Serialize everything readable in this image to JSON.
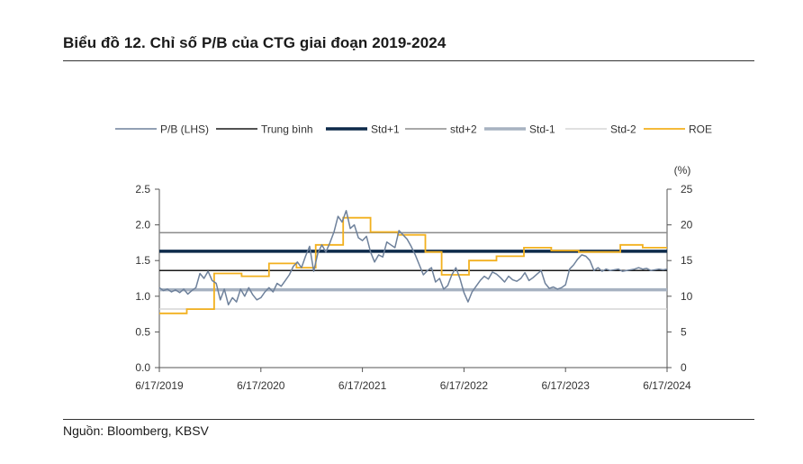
{
  "header": {
    "title": "Biểu đồ 12. Chỉ số P/B của CTG giai đoạn 2019-2024"
  },
  "footer": {
    "source": "Nguồn: Bloomberg, KBSV"
  },
  "chart_data": {
    "type": "line",
    "title": "",
    "xlabel": "",
    "ylabel_left": "",
    "ylabel_right": "(%)",
    "x_ticks": [
      "6/17/2019",
      "6/17/2020",
      "6/17/2021",
      "6/17/2022",
      "6/17/2023",
      "6/17/2024"
    ],
    "ylim_left": [
      0,
      2.5
    ],
    "ylim_right": [
      0,
      25
    ],
    "yticks_left": [
      "0.0",
      "0.5",
      "1.0",
      "1.5",
      "2.0",
      "2.5"
    ],
    "yticks_right": [
      "0",
      "5",
      "10",
      "15",
      "20",
      "25"
    ],
    "legend_position": "top",
    "legend": [
      {
        "name": "P/B (LHS)",
        "color": "#6e819b",
        "width": 1.5
      },
      {
        "name": "Trung bình",
        "color": "#1a1a1a",
        "width": 1.5
      },
      {
        "name": "Std+1",
        "color": "#0d2a4a",
        "width": 3.5
      },
      {
        "name": "std+2",
        "color": "#8c8c8c",
        "width": 1.5
      },
      {
        "name": "Std-1",
        "color": "#a7b2c1",
        "width": 3.5
      },
      {
        "name": "Std-2",
        "color": "#d6d6d6",
        "width": 1.5
      },
      {
        "name": "ROE",
        "color": "#f2b01e",
        "width": 1.8
      }
    ],
    "horizontal_lines": [
      {
        "name": "Trung bình",
        "value": 1.36
      },
      {
        "name": "Std+1",
        "value": 1.63
      },
      {
        "name": "std+2",
        "value": 1.89
      },
      {
        "name": "Std-1",
        "value": 1.09
      },
      {
        "name": "Std-2",
        "value": 0.82
      }
    ],
    "pb_series": {
      "name": "P/B (LHS)",
      "x_years": [
        0.0,
        0.04,
        0.08,
        0.12,
        0.16,
        0.2,
        0.24,
        0.28,
        0.32,
        0.36,
        0.4,
        0.44,
        0.48,
        0.52,
        0.56,
        0.6,
        0.64,
        0.68,
        0.72,
        0.76,
        0.8,
        0.84,
        0.88,
        0.92,
        0.96,
        1.0,
        1.04,
        1.08,
        1.12,
        1.16,
        1.2,
        1.24,
        1.28,
        1.32,
        1.36,
        1.4,
        1.44,
        1.48,
        1.52,
        1.56,
        1.6,
        1.64,
        1.68,
        1.72,
        1.76,
        1.8,
        1.84,
        1.88,
        1.92,
        1.96,
        2.0,
        2.04,
        2.08,
        2.12,
        2.16,
        2.2,
        2.24,
        2.28,
        2.32,
        2.36,
        2.4,
        2.44,
        2.48,
        2.52,
        2.56,
        2.6,
        2.64,
        2.68,
        2.72,
        2.76,
        2.8,
        2.84,
        2.88,
        2.92,
        2.96,
        3.0,
        3.04,
        3.08,
        3.12,
        3.16,
        3.2,
        3.24,
        3.28,
        3.32,
        3.36,
        3.4,
        3.44,
        3.48,
        3.52,
        3.56,
        3.6,
        3.64,
        3.68,
        3.72,
        3.76,
        3.8,
        3.84,
        3.88,
        3.92,
        3.96,
        4.0,
        4.04,
        4.08,
        4.12,
        4.16,
        4.2,
        4.24,
        4.28,
        4.32,
        4.36,
        4.4,
        4.44,
        4.48,
        4.52,
        4.56,
        4.6,
        4.64,
        4.68,
        4.72,
        4.76,
        4.8,
        4.84,
        4.88,
        4.92,
        4.96,
        5.0
      ],
      "values": [
        1.12,
        1.08,
        1.1,
        1.06,
        1.09,
        1.05,
        1.1,
        1.03,
        1.08,
        1.12,
        1.32,
        1.25,
        1.35,
        1.22,
        1.18,
        0.95,
        1.1,
        0.88,
        0.98,
        0.92,
        1.1,
        1.0,
        1.12,
        1.02,
        0.95,
        0.98,
        1.06,
        1.12,
        1.06,
        1.18,
        1.14,
        1.22,
        1.3,
        1.42,
        1.48,
        1.4,
        1.56,
        1.7,
        1.35,
        1.6,
        1.72,
        1.62,
        1.75,
        1.9,
        2.12,
        2.04,
        2.2,
        1.95,
        2.0,
        1.82,
        1.78,
        1.84,
        1.62,
        1.48,
        1.58,
        1.55,
        1.76,
        1.72,
        1.68,
        1.92,
        1.86,
        1.8,
        1.7,
        1.58,
        1.44,
        1.3,
        1.36,
        1.4,
        1.2,
        1.25,
        1.1,
        1.15,
        1.3,
        1.4,
        1.25,
        1.05,
        0.92,
        1.06,
        1.14,
        1.22,
        1.28,
        1.24,
        1.34,
        1.31,
        1.26,
        1.2,
        1.28,
        1.23,
        1.21,
        1.25,
        1.33,
        1.22,
        1.26,
        1.31,
        1.36,
        1.18,
        1.11,
        1.13,
        1.1,
        1.12,
        1.16,
        1.38,
        1.44,
        1.52,
        1.58,
        1.56,
        1.5,
        1.36,
        1.4,
        1.35,
        1.38,
        1.36,
        1.37,
        1.38,
        1.35,
        1.36,
        1.37,
        1.38,
        1.4,
        1.38,
        1.39,
        1.36,
        1.37,
        1.38,
        1.37,
        1.38
      ]
    },
    "roe_series": {
      "name": "ROE",
      "steps": [
        {
          "from": 0.0,
          "to": 0.27,
          "value": 7.6
        },
        {
          "from": 0.27,
          "to": 0.54,
          "value": 8.2
        },
        {
          "from": 0.54,
          "to": 0.81,
          "value": 13.2
        },
        {
          "from": 0.81,
          "to": 1.08,
          "value": 12.8
        },
        {
          "from": 1.08,
          "to": 1.35,
          "value": 14.6
        },
        {
          "from": 1.35,
          "to": 1.54,
          "value": 14.0
        },
        {
          "from": 1.54,
          "to": 1.81,
          "value": 17.2
        },
        {
          "from": 1.81,
          "to": 2.08,
          "value": 21.0
        },
        {
          "from": 2.08,
          "to": 2.35,
          "value": 19.0
        },
        {
          "from": 2.35,
          "to": 2.62,
          "value": 18.6
        },
        {
          "from": 2.62,
          "to": 2.78,
          "value": 16.2
        },
        {
          "from": 2.78,
          "to": 3.05,
          "value": 13.0
        },
        {
          "from": 3.05,
          "to": 3.32,
          "value": 15.0
        },
        {
          "from": 3.32,
          "to": 3.59,
          "value": 15.6
        },
        {
          "from": 3.59,
          "to": 3.86,
          "value": 16.8
        },
        {
          "from": 3.86,
          "to": 4.13,
          "value": 16.4
        },
        {
          "from": 4.13,
          "to": 4.54,
          "value": 16.2
        },
        {
          "from": 4.54,
          "to": 4.76,
          "value": 17.2
        },
        {
          "from": 4.76,
          "to": 5.0,
          "value": 16.8
        }
      ]
    }
  }
}
